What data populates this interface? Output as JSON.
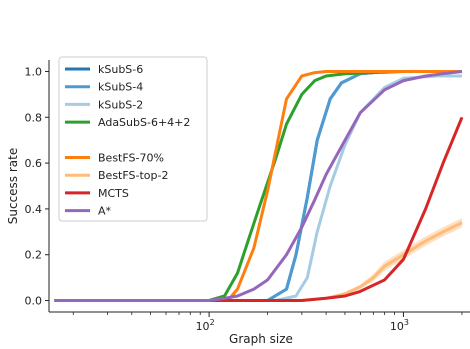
{
  "chart_data": {
    "type": "line",
    "xlabel": "Graph size",
    "ylabel": "Success rate",
    "xscale": "log",
    "xlim": [
      15,
      2200
    ],
    "ylim": [
      -0.05,
      1.05
    ],
    "xticks": [
      {
        "value": 100,
        "base": "10",
        "exp": "2"
      },
      {
        "value": 1000,
        "base": "10",
        "exp": "3"
      }
    ],
    "yticks": [
      "0.0",
      "0.2",
      "0.4",
      "0.6",
      "0.8",
      "1.0"
    ],
    "grid": false,
    "legend_position": "top-left",
    "series": [
      {
        "name": "kSubS-6",
        "color": "#1f77b4",
        "points": [
          [
            16,
            0
          ],
          [
            100,
            0
          ],
          [
            200,
            0
          ],
          [
            250,
            0.05
          ],
          [
            280,
            0.2
          ],
          [
            320,
            0.45
          ],
          [
            360,
            0.7
          ],
          [
            420,
            0.88
          ],
          [
            480,
            0.95
          ],
          [
            600,
            0.99
          ],
          [
            800,
            1.0
          ],
          [
            1000,
            1.0
          ],
          [
            2000,
            1.0
          ]
        ]
      },
      {
        "name": "kSubS-4",
        "color": "#4f9ad0",
        "points": [
          [
            16,
            0
          ],
          [
            100,
            0
          ],
          [
            200,
            0
          ],
          [
            250,
            0.05
          ],
          [
            280,
            0.2
          ],
          [
            320,
            0.45
          ],
          [
            360,
            0.7
          ],
          [
            420,
            0.88
          ],
          [
            480,
            0.95
          ],
          [
            600,
            0.99
          ],
          [
            800,
            1.0
          ],
          [
            1000,
            1.0
          ],
          [
            2000,
            1.0
          ]
        ]
      },
      {
        "name": "kSubS-2",
        "color": "#a6cbe3",
        "points": [
          [
            16,
            0
          ],
          [
            100,
            0
          ],
          [
            220,
            0
          ],
          [
            280,
            0.02
          ],
          [
            320,
            0.1
          ],
          [
            360,
            0.3
          ],
          [
            420,
            0.5
          ],
          [
            500,
            0.68
          ],
          [
            600,
            0.82
          ],
          [
            800,
            0.93
          ],
          [
            1000,
            0.97
          ],
          [
            1500,
            0.98
          ],
          [
            2000,
            0.98
          ]
        ]
      },
      {
        "name": "AdaSubS-6+4+2",
        "color": "#2ca02c",
        "points": [
          [
            16,
            0
          ],
          [
            100,
            0
          ],
          [
            120,
            0.02
          ],
          [
            140,
            0.12
          ],
          [
            160,
            0.27
          ],
          [
            180,
            0.4
          ],
          [
            220,
            0.62
          ],
          [
            250,
            0.77
          ],
          [
            300,
            0.9
          ],
          [
            350,
            0.96
          ],
          [
            400,
            0.98
          ],
          [
            500,
            0.99
          ],
          [
            1000,
            1.0
          ],
          [
            2000,
            1.0
          ]
        ]
      },
      {
        "name": "",
        "color": "#ffffff",
        "points": []
      },
      {
        "name": "BestFS-70%",
        "color": "#ff7f0e",
        "points": [
          [
            16,
            0
          ],
          [
            100,
            0
          ],
          [
            125,
            0
          ],
          [
            140,
            0.05
          ],
          [
            170,
            0.23
          ],
          [
            200,
            0.48
          ],
          [
            250,
            0.88
          ],
          [
            300,
            0.98
          ],
          [
            350,
            0.995
          ],
          [
            400,
            1.0
          ],
          [
            1000,
            1.0
          ],
          [
            2000,
            1.0
          ]
        ]
      },
      {
        "name": "BestFS-top-2",
        "color": "#ffbb78",
        "band": 0.02,
        "points": [
          [
            16,
            0
          ],
          [
            100,
            0
          ],
          [
            300,
            0
          ],
          [
            400,
            0.01
          ],
          [
            500,
            0.03
          ],
          [
            600,
            0.06
          ],
          [
            700,
            0.1
          ],
          [
            800,
            0.15
          ],
          [
            1000,
            0.2
          ],
          [
            1300,
            0.26
          ],
          [
            1600,
            0.3
          ],
          [
            2000,
            0.34
          ]
        ]
      },
      {
        "name": "MCTS",
        "color": "#d62728",
        "points": [
          [
            16,
            0
          ],
          [
            100,
            0
          ],
          [
            300,
            0
          ],
          [
            400,
            0.01
          ],
          [
            500,
            0.02
          ],
          [
            600,
            0.04
          ],
          [
            800,
            0.09
          ],
          [
            1000,
            0.18
          ],
          [
            1300,
            0.4
          ],
          [
            1600,
            0.6
          ],
          [
            2000,
            0.8
          ]
        ]
      },
      {
        "name": "A*",
        "color": "#9467bd",
        "points": [
          [
            16,
            0
          ],
          [
            100,
            0
          ],
          [
            120,
            0.01
          ],
          [
            140,
            0.02
          ],
          [
            170,
            0.05
          ],
          [
            200,
            0.09
          ],
          [
            250,
            0.2
          ],
          [
            300,
            0.32
          ],
          [
            350,
            0.44
          ],
          [
            400,
            0.55
          ],
          [
            500,
            0.7
          ],
          [
            600,
            0.82
          ],
          [
            800,
            0.92
          ],
          [
            1000,
            0.96
          ],
          [
            1300,
            0.98
          ],
          [
            1600,
            0.99
          ],
          [
            2000,
            1.0
          ]
        ]
      }
    ]
  }
}
